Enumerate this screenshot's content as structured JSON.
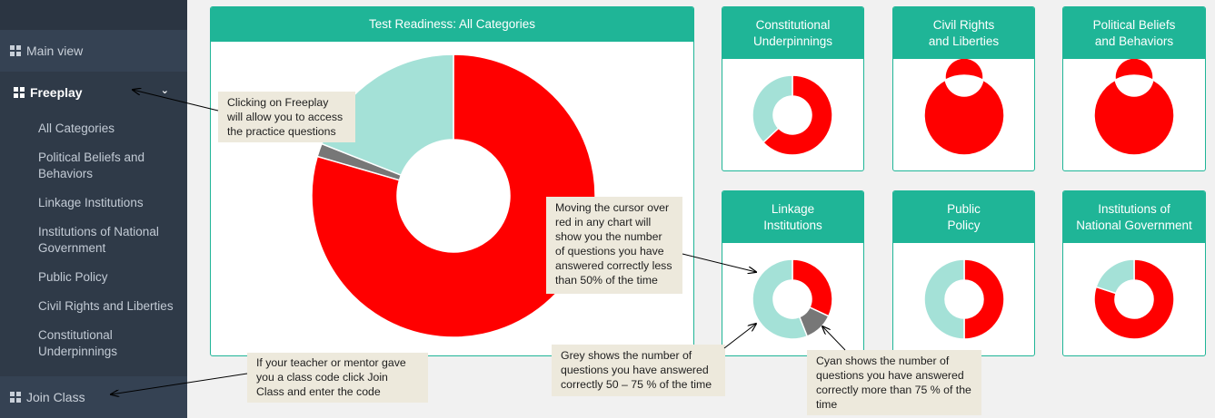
{
  "colors": {
    "red": "#ff0000",
    "cyan": "#a4e1d7",
    "grey": "#777777",
    "teal": "#1fb597",
    "sidebar": "#2f3a48"
  },
  "sidebar": {
    "main_view": "Main view",
    "freeplay": "Freeplay",
    "items": [
      {
        "label": "All Categories"
      },
      {
        "label": "Political Beliefs and Behaviors"
      },
      {
        "label": "Linkage Institutions"
      },
      {
        "label": "Institutions of National Government"
      },
      {
        "label": "Public Policy"
      },
      {
        "label": "Civil Rights and Liberties"
      },
      {
        "label": "Constitutional Underpinnings"
      }
    ],
    "join_class": "Join Class"
  },
  "main_chart": {
    "title": "Test Readiness: All Categories",
    "chart_data": {
      "type": "pie",
      "slices": [
        {
          "label": "red",
          "value": 79.5
        },
        {
          "label": "grey",
          "value": 1.5
        },
        {
          "label": "cyan",
          "value": 19
        }
      ]
    }
  },
  "small_charts": [
    {
      "title_line1": "Constitutional",
      "title_line2": "Underpinnings",
      "chart_data": {
        "type": "pie",
        "slices": [
          {
            "label": "red",
            "value": 63
          },
          {
            "label": "grey",
            "value": 0
          },
          {
            "label": "cyan",
            "value": 37
          }
        ]
      }
    },
    {
      "title_line1": "Civil Rights",
      "title_line2": "and Liberties",
      "chart_data": {
        "type": "pie",
        "slices": [
          {
            "label": "red",
            "value": 100
          },
          {
            "label": "grey",
            "value": 0
          },
          {
            "label": "cyan",
            "value": 0
          }
        ]
      }
    },
    {
      "title_line1": "Political Beliefs",
      "title_line2": "and Behaviors",
      "chart_data": {
        "type": "pie",
        "slices": [
          {
            "label": "red",
            "value": 100
          },
          {
            "label": "grey",
            "value": 0
          },
          {
            "label": "cyan",
            "value": 0
          }
        ]
      }
    },
    {
      "title_line1": "Linkage",
      "title_line2": "Institutions",
      "chart_data": {
        "type": "pie",
        "slices": [
          {
            "label": "red",
            "value": 32
          },
          {
            "label": "grey",
            "value": 12
          },
          {
            "label": "cyan",
            "value": 56
          }
        ]
      }
    },
    {
      "title_line1": "Public",
      "title_line2": "Policy",
      "chart_data": {
        "type": "pie",
        "slices": [
          {
            "label": "red",
            "value": 50
          },
          {
            "label": "grey",
            "value": 0
          },
          {
            "label": "cyan",
            "value": 50
          }
        ]
      }
    },
    {
      "title_line1": "Institutions of",
      "title_line2": "National Government",
      "chart_data": {
        "type": "pie",
        "slices": [
          {
            "label": "red",
            "value": 80
          },
          {
            "label": "grey",
            "value": 0
          },
          {
            "label": "cyan",
            "value": 20
          }
        ]
      }
    }
  ],
  "notes": {
    "freeplay": "Clicking on Freeplay will allow you to access the practice questions",
    "red": "Moving the cursor over red in any chart will show you the number of questions you have answered correctly less than 50% of the time",
    "join": "If your teacher or mentor  gave you a class code click Join Class and enter  the code",
    "grey": "Grey shows the number of questions you have answered correctly 50 – 75 % of the time",
    "cyan": "Cyan shows the number of questions you have answered correctly more than 75 % of the time"
  }
}
